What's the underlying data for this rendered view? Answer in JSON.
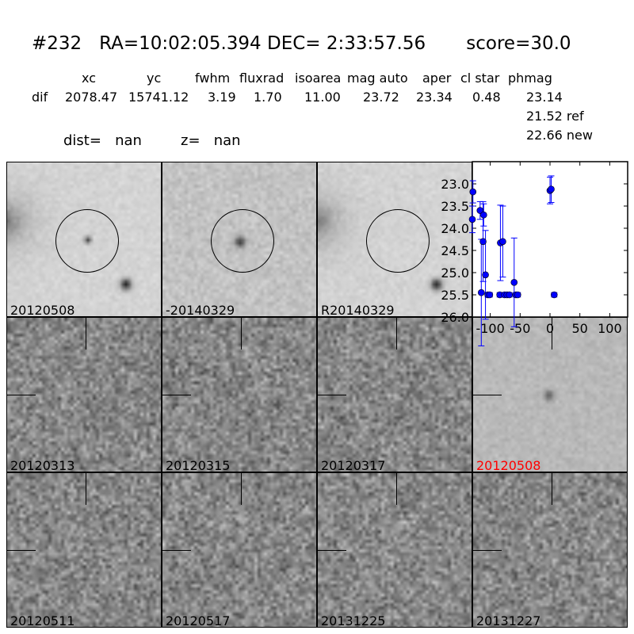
{
  "header": {
    "title": "#232   RA=10:02:05.394 DEC= 2:33:57.56       score=30.0",
    "columns": [
      "xc",
      "yc",
      "fwhm",
      "fluxrad",
      "isoarea",
      "mag auto",
      "aper",
      "cl star",
      "phmag"
    ],
    "row_label": "dif",
    "values": [
      "2078.47",
      "15741.12",
      "3.19",
      "1.70",
      "11.00",
      "23.72",
      "23.34",
      "0.48",
      "23.14"
    ],
    "ref": "21.52 ref",
    "new": "22.66 new",
    "dist": "dist=   nan",
    "z": "z=   nan"
  },
  "panels": [
    {
      "label": "20120508",
      "type": "ref"
    },
    {
      "label": "-20140329",
      "type": "diff"
    },
    {
      "label": "R20140329",
      "type": "ref2"
    },
    {
      "label": "20120313",
      "type": "noise"
    },
    {
      "label": "20120315",
      "type": "noise"
    },
    {
      "label": "20120317",
      "type": "noise"
    },
    {
      "label": "20120508",
      "type": "detect",
      "color": "#ff0000"
    },
    {
      "label": "20120511",
      "type": "noise"
    },
    {
      "label": "20120517",
      "type": "noise"
    },
    {
      "label": "20131225",
      "type": "noise"
    },
    {
      "label": "20131227",
      "type": "noise"
    }
  ],
  "chart_data": {
    "type": "scatter",
    "xlim": [
      -130,
      130
    ],
    "ylim": [
      26.0,
      22.5
    ],
    "y_inverted": true,
    "xticks": [
      -100,
      -50,
      0,
      50,
      100
    ],
    "yticks": [
      23.0,
      23.5,
      24.0,
      24.5,
      25.0,
      25.5,
      26.0
    ],
    "xtick_labels": [
      "-100",
      "-50",
      "0",
      "50",
      "100"
    ],
    "ytick_labels": [
      "23.0",
      "23.5",
      "24.0",
      "24.5",
      "25.0",
      "25.5",
      "26.0"
    ],
    "marker_color": "#0000ff",
    "points": [
      {
        "x": -129,
        "y": 23.18,
        "err": 0.25
      },
      {
        "x": -130,
        "y": 23.8,
        "err": 0.3
      },
      {
        "x": -117,
        "y": 23.6,
        "err": 0.2
      },
      {
        "x": -111,
        "y": 23.7,
        "err": 0.25
      },
      {
        "x": -112,
        "y": 24.3,
        "err": 0.9
      },
      {
        "x": -108,
        "y": 25.05,
        "err": 1.0
      },
      {
        "x": -115,
        "y": 25.45,
        "err": 1.2
      },
      {
        "x": -104,
        "y": 25.5,
        "err": 0.05
      },
      {
        "x": -101,
        "y": 25.5,
        "err": 0.05
      },
      {
        "x": -84,
        "y": 25.5,
        "err": 0.05
      },
      {
        "x": -83,
        "y": 24.33,
        "err": 0.85
      },
      {
        "x": -79,
        "y": 24.3,
        "err": 0.8
      },
      {
        "x": -76,
        "y": 25.5,
        "err": 0.05
      },
      {
        "x": -72,
        "y": 25.5,
        "err": 0.05
      },
      {
        "x": -68,
        "y": 25.5,
        "err": 0.05
      },
      {
        "x": -60,
        "y": 25.22,
        "err": 1.0
      },
      {
        "x": -57,
        "y": 25.5,
        "err": 0.05
      },
      {
        "x": -54,
        "y": 25.5,
        "err": 0.05
      },
      {
        "x": 0,
        "y": 23.15,
        "err": 0.3
      },
      {
        "x": 2,
        "y": 23.12,
        "err": 0.3
      },
      {
        "x": 7,
        "y": 25.5,
        "err": 0.05
      }
    ]
  }
}
